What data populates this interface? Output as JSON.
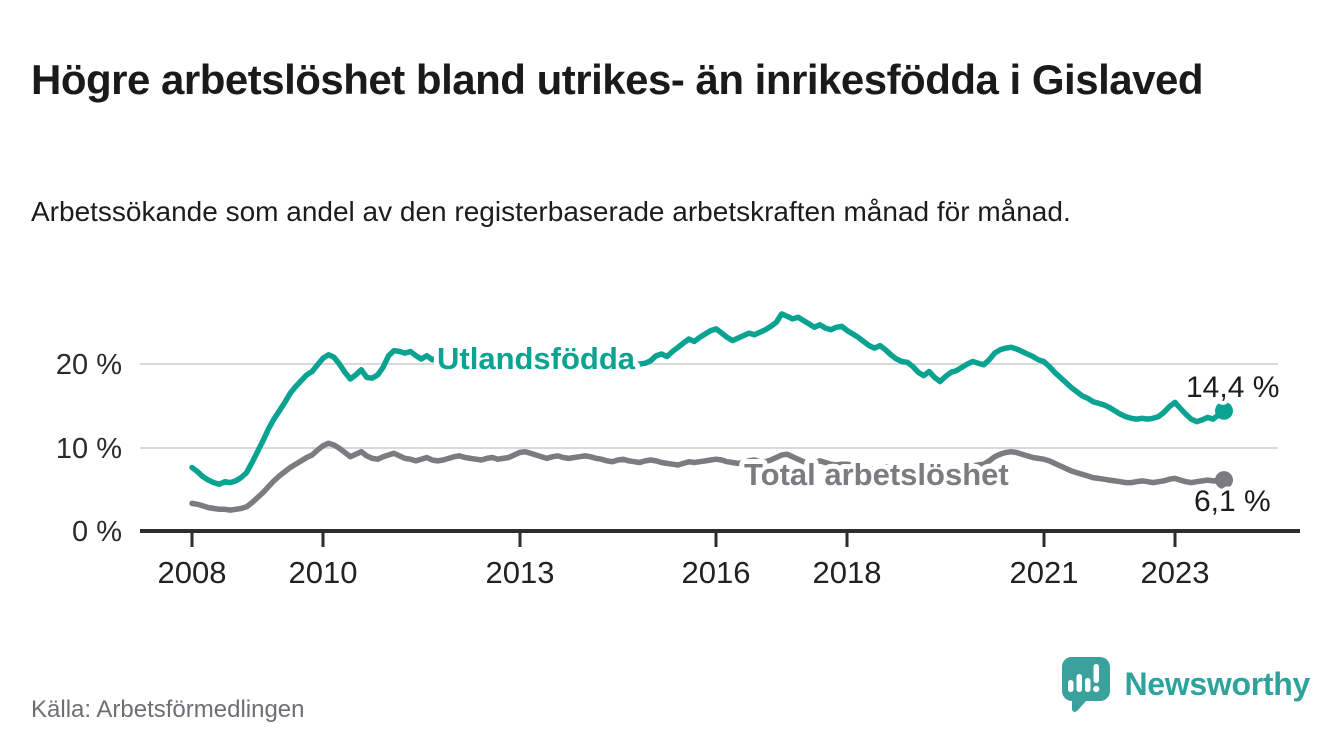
{
  "header": {
    "title": "Högre arbetslöshet bland utrikes- än inrikesfödda i Gislaved",
    "subtitle": "Arbetssökande som andel av den registerbaserade arbetskraften månad för månad."
  },
  "footer": {
    "source": "Källa: Arbetsförmedlingen",
    "brand": "Newsworthy"
  },
  "colors": {
    "foreign_born_line": "#0aa392",
    "total_line": "#7b7b80",
    "brand_teal": "#2ea39c",
    "axis": "#2e2e2e",
    "gridline": "#d9d9d9",
    "text_dark": "#1a1a1a",
    "text_muted": "#6e6e73"
  },
  "chart_data": {
    "type": "line",
    "title": "Högre arbetslöshet bland utrikes- än inrikesfödda i Gislaved",
    "subtitle": "Arbetssökande som andel av den registerbaserade arbetskraften månad för månad.",
    "source": "Källa: Arbetsförmedlingen",
    "unit": "%",
    "frequency": "monthly",
    "x_range": [
      "2008-01",
      "2023-10"
    ],
    "ylim": [
      0,
      27
    ],
    "grid": true,
    "legend_position": "labels-on-lines",
    "x_tick_labels": [
      "2008",
      "2010",
      "2013",
      "2016",
      "2018",
      "2021",
      "2023"
    ],
    "y_tick_values": [
      0,
      10,
      20
    ],
    "y_tick_labels": [
      "0 %",
      "10 %",
      "20 %"
    ],
    "series": [
      {
        "name": "Utlandsfödda",
        "color": "#0aa392",
        "end_label": "14,4 %",
        "end_value": 14.4,
        "values": [
          7.6,
          7.1,
          6.5,
          6.1,
          5.8,
          5.6,
          5.9,
          5.8,
          6.0,
          6.4,
          7.0,
          8.2,
          9.5,
          10.8,
          12.2,
          13.4,
          14.4,
          15.4,
          16.5,
          17.3,
          18.0,
          18.7,
          19.1,
          19.9,
          20.7,
          21.1,
          20.8,
          20.0,
          19.0,
          18.2,
          18.7,
          19.3,
          18.4,
          18.3,
          18.7,
          19.6,
          21.0,
          21.6,
          21.5,
          21.3,
          21.5,
          21.0,
          20.6,
          21.0,
          20.5,
          20.8,
          21.0,
          20.8,
          21.0,
          20.9,
          20.7,
          20.5,
          20.3,
          20.1,
          20.4,
          20.2,
          20.0,
          20.2,
          20.5,
          20.7,
          20.8,
          20.6,
          20.4,
          20.2,
          20.0,
          19.9,
          20.1,
          19.9,
          19.8,
          19.9,
          20.0,
          20.1,
          20.1,
          20.0,
          19.9,
          19.8,
          19.7,
          19.7,
          19.8,
          19.9,
          19.9,
          20.0,
          20.0,
          20.1,
          20.4,
          21.0,
          21.2,
          20.9,
          21.5,
          22.0,
          22.5,
          23.0,
          22.7,
          23.2,
          23.6,
          24.0,
          24.2,
          23.7,
          23.2,
          22.8,
          23.1,
          23.4,
          23.7,
          23.5,
          23.8,
          24.1,
          24.5,
          25.0,
          26.0,
          25.7,
          25.4,
          25.6,
          25.2,
          24.8,
          24.4,
          24.7,
          24.3,
          24.1,
          24.4,
          24.5,
          24.0,
          23.6,
          23.2,
          22.7,
          22.2,
          21.9,
          22.2,
          21.7,
          21.1,
          20.6,
          20.3,
          20.2,
          19.7,
          19.0,
          18.6,
          19.1,
          18.4,
          17.9,
          18.5,
          19.0,
          19.2,
          19.6,
          20.0,
          20.3,
          20.1,
          19.9,
          20.5,
          21.3,
          21.7,
          21.9,
          22.0,
          21.8,
          21.5,
          21.2,
          20.9,
          20.5,
          20.3,
          19.7,
          19.0,
          18.4,
          17.8,
          17.2,
          16.7,
          16.2,
          15.9,
          15.5,
          15.3,
          15.1,
          14.8,
          14.4,
          14.0,
          13.7,
          13.5,
          13.4,
          13.5,
          13.4,
          13.5,
          13.7,
          14.2,
          14.9,
          15.4,
          14.7,
          14.0,
          13.4,
          13.1,
          13.3,
          13.6,
          13.4,
          13.9,
          14.4
        ]
      },
      {
        "name": "Total arbetslöshet",
        "color": "#7b7b80",
        "end_label": "6,1 %",
        "end_value": 6.1,
        "values": [
          3.3,
          3.2,
          3.0,
          2.8,
          2.7,
          2.6,
          2.6,
          2.5,
          2.6,
          2.7,
          2.9,
          3.4,
          4.0,
          4.6,
          5.3,
          6.0,
          6.6,
          7.1,
          7.6,
          8.0,
          8.4,
          8.8,
          9.1,
          9.7,
          10.2,
          10.5,
          10.3,
          9.9,
          9.4,
          8.9,
          9.2,
          9.5,
          9.0,
          8.7,
          8.6,
          8.9,
          9.1,
          9.3,
          9.0,
          8.7,
          8.6,
          8.4,
          8.6,
          8.8,
          8.5,
          8.4,
          8.5,
          8.7,
          8.9,
          9.0,
          8.8,
          8.7,
          8.6,
          8.5,
          8.7,
          8.8,
          8.6,
          8.7,
          8.8,
          9.1,
          9.4,
          9.5,
          9.3,
          9.1,
          8.9,
          8.7,
          8.9,
          9.0,
          8.8,
          8.7,
          8.8,
          8.9,
          9.0,
          8.9,
          8.7,
          8.6,
          8.4,
          8.3,
          8.5,
          8.6,
          8.4,
          8.3,
          8.2,
          8.4,
          8.5,
          8.4,
          8.2,
          8.1,
          8.0,
          7.9,
          8.1,
          8.3,
          8.2,
          8.3,
          8.4,
          8.5,
          8.6,
          8.5,
          8.3,
          8.2,
          8.1,
          8.2,
          8.4,
          8.5,
          8.3,
          8.3,
          8.5,
          8.8,
          9.1,
          9.2,
          8.9,
          8.6,
          8.3,
          8.1,
          8.2,
          8.4,
          8.2,
          8.0,
          7.9,
          8.0,
          8.0,
          7.9,
          7.7,
          7.6,
          7.5,
          7.4,
          7.6,
          7.7,
          7.5,
          7.4,
          7.4,
          7.5,
          7.6,
          7.5,
          7.4,
          7.3,
          7.3,
          7.2,
          7.4,
          7.5,
          7.4,
          7.5,
          7.6,
          7.8,
          7.9,
          8.0,
          8.4,
          8.9,
          9.2,
          9.4,
          9.5,
          9.4,
          9.2,
          9.0,
          8.8,
          8.7,
          8.6,
          8.4,
          8.1,
          7.8,
          7.5,
          7.2,
          7.0,
          6.8,
          6.6,
          6.4,
          6.3,
          6.2,
          6.1,
          6.0,
          5.9,
          5.8,
          5.8,
          5.9,
          6.0,
          5.9,
          5.8,
          5.9,
          6.0,
          6.2,
          6.3,
          6.1,
          5.9,
          5.8,
          5.9,
          6.0,
          6.1,
          6.0,
          6.0,
          6.1
        ]
      }
    ]
  }
}
